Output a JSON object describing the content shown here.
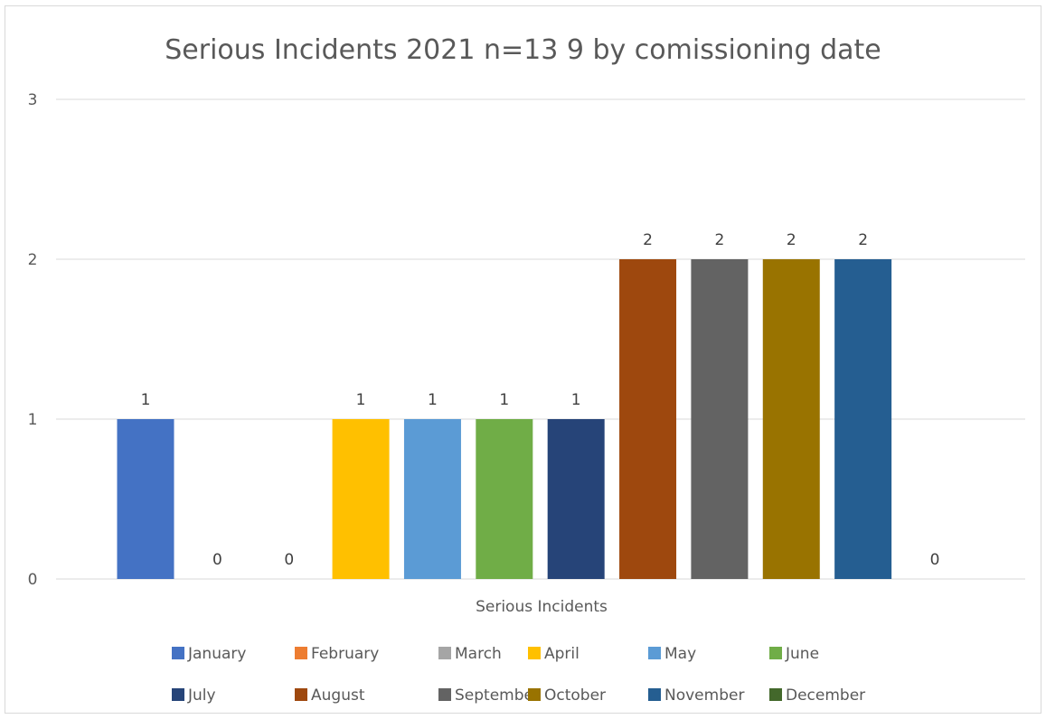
{
  "chart_data": {
    "type": "bar",
    "title": "Serious Incidents 2021 n=13 9 by comissioning date",
    "xlabel": "Serious Incidents",
    "ylabel": "",
    "ylim": [
      0,
      3
    ],
    "yticks": [
      0,
      1,
      2,
      3
    ],
    "grid": true,
    "legend_position": "bottom",
    "categories": [
      "Serious Incidents"
    ],
    "series": [
      {
        "name": "January",
        "values": [
          1
        ],
        "color": "#4472C4"
      },
      {
        "name": "February",
        "values": [
          0
        ],
        "color": "#ED7D31"
      },
      {
        "name": "March",
        "values": [
          0
        ],
        "color": "#A5A5A5"
      },
      {
        "name": "April",
        "values": [
          1
        ],
        "color": "#FFC000"
      },
      {
        "name": "May",
        "values": [
          1
        ],
        "color": "#5B9BD5"
      },
      {
        "name": "June",
        "values": [
          1
        ],
        "color": "#70AD47"
      },
      {
        "name": "July",
        "values": [
          1
        ],
        "color": "#264478"
      },
      {
        "name": "August",
        "values": [
          2
        ],
        "color": "#9E480E"
      },
      {
        "name": "September",
        "values": [
          2
        ],
        "color": "#636363"
      },
      {
        "name": "October",
        "values": [
          2
        ],
        "color": "#997300"
      },
      {
        "name": "November",
        "values": [
          2
        ],
        "color": "#255E91"
      },
      {
        "name": "December",
        "values": [
          0
        ],
        "color": "#43682B"
      }
    ]
  }
}
